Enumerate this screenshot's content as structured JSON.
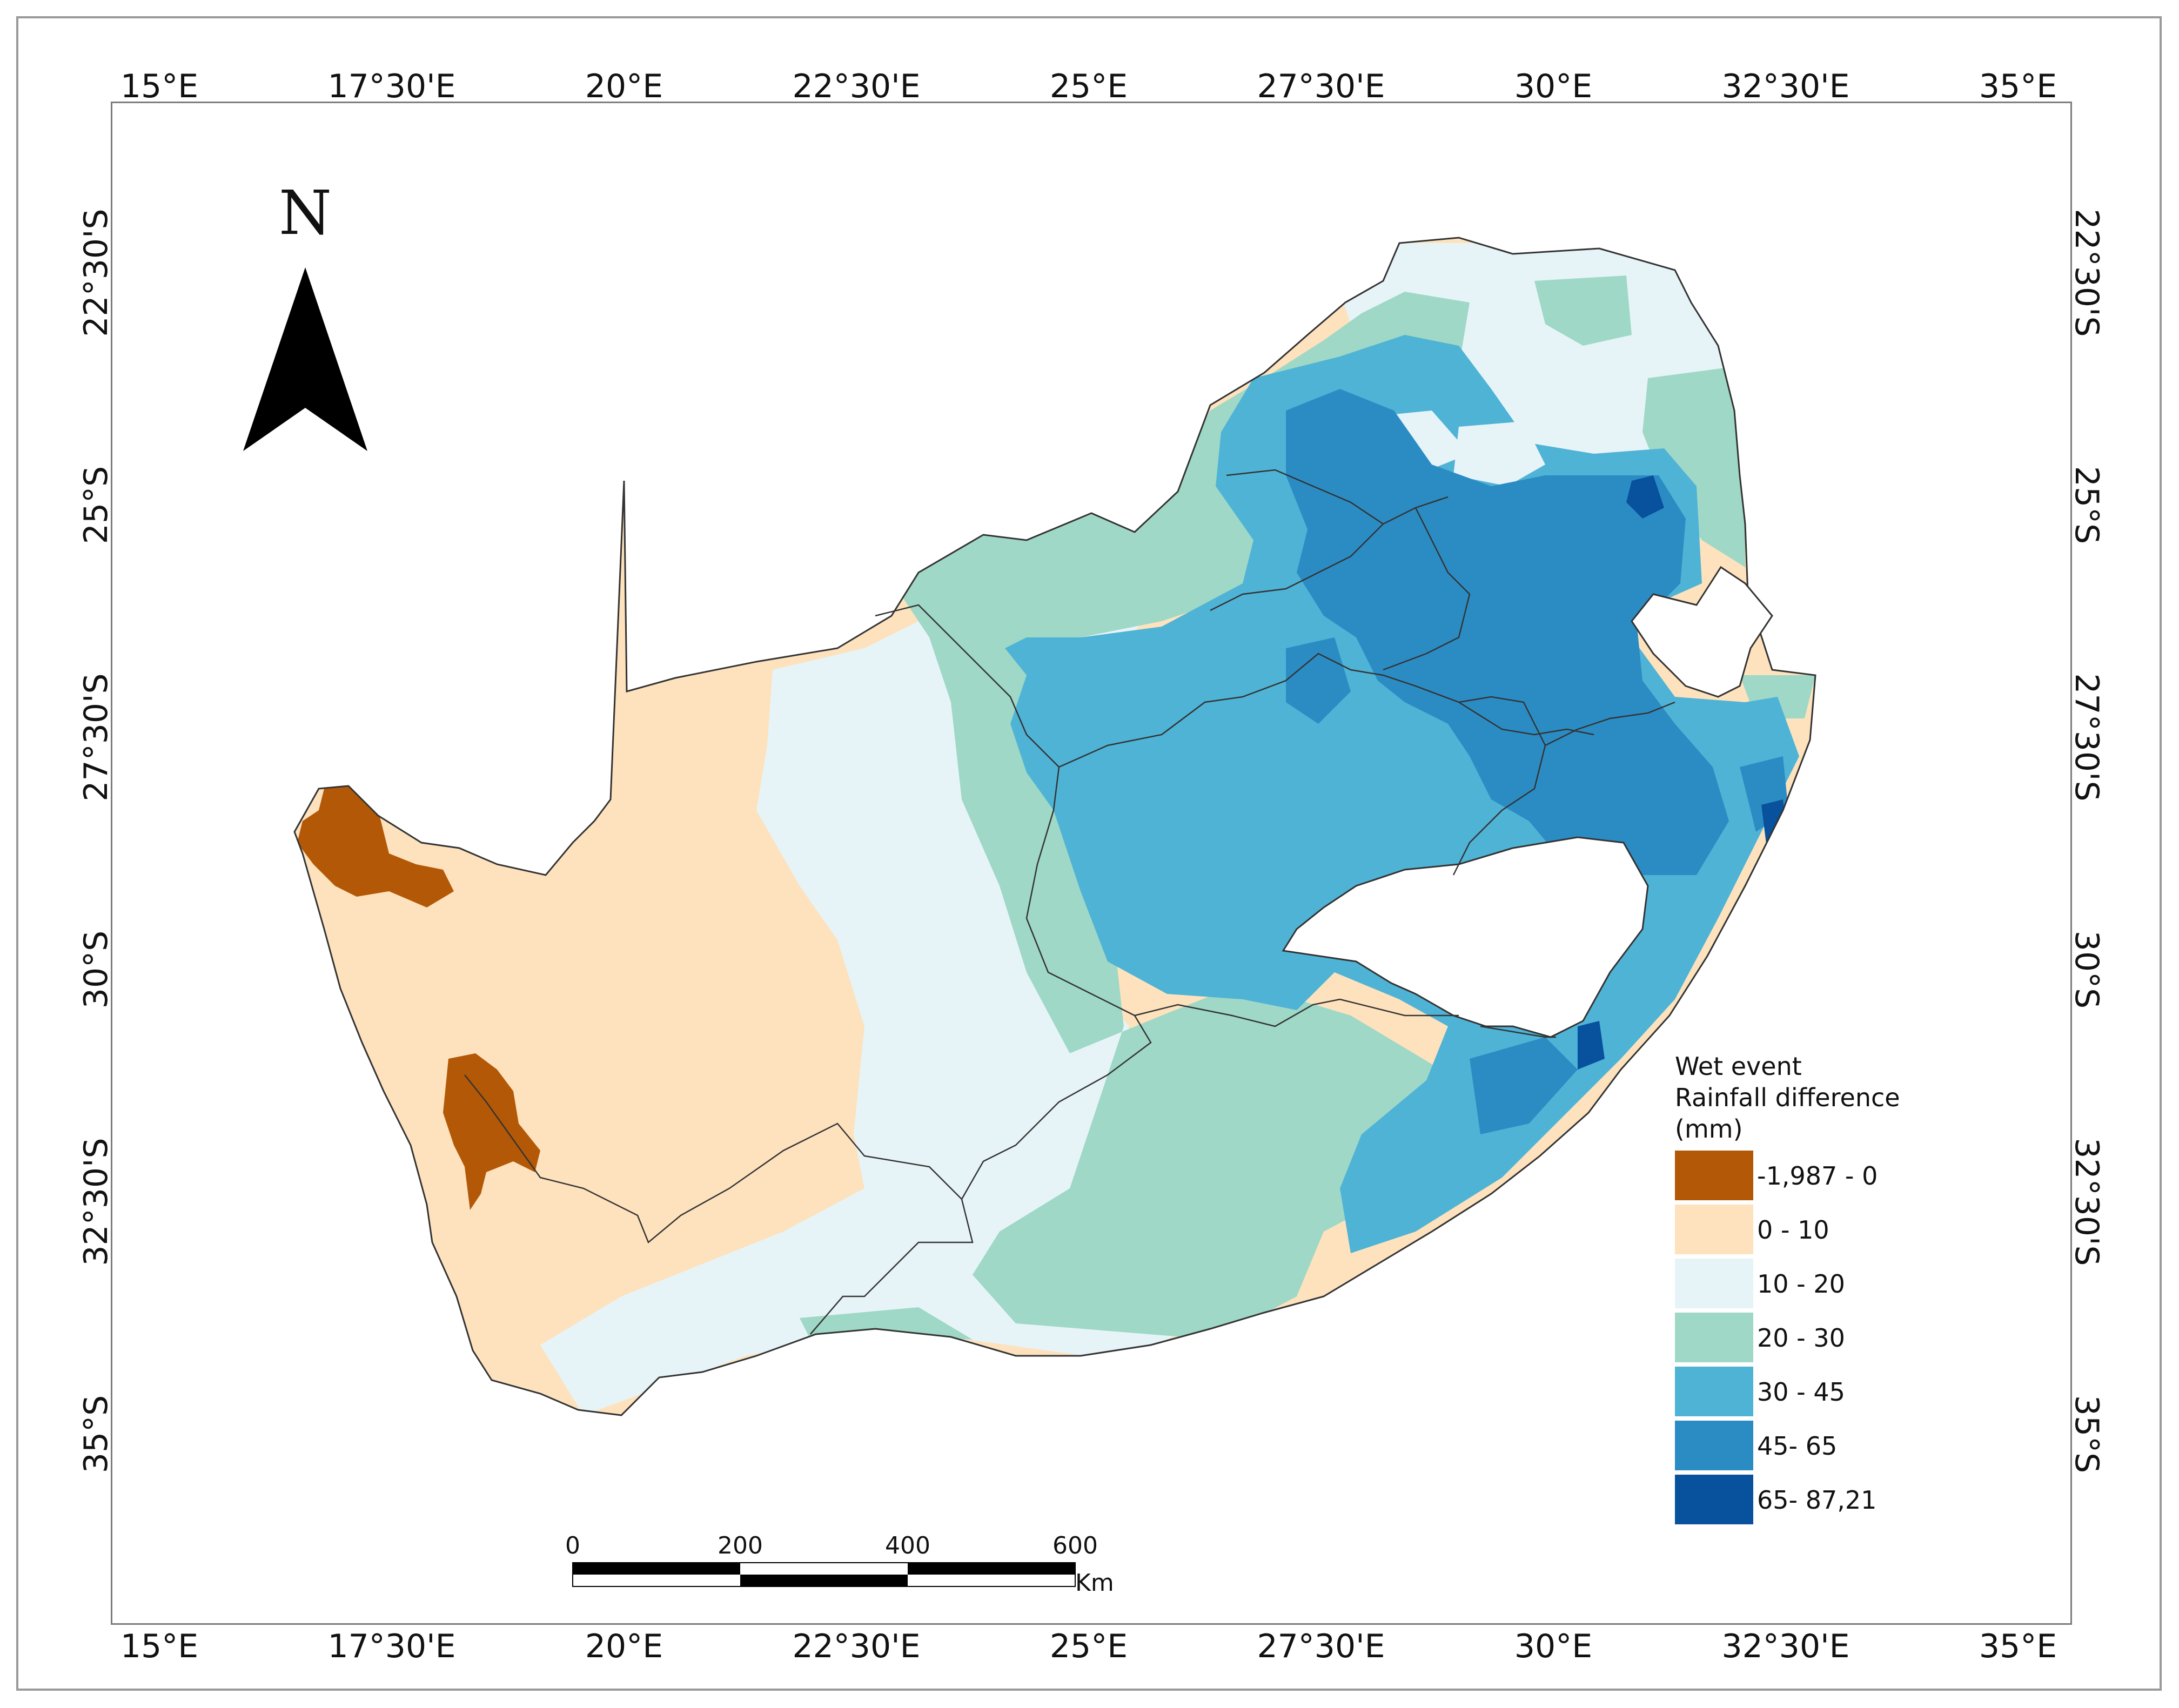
{
  "axes": {
    "longitudes": [
      "15°E",
      "17°30'E",
      "20°E",
      "22°30'E",
      "25°E",
      "27°30'E",
      "30°E",
      "32°30'E",
      "35°E"
    ],
    "latitudes": [
      "22°30'S",
      "25°S",
      "27°30'S",
      "30°S",
      "32°30'S",
      "35°S"
    ]
  },
  "north_arrow": {
    "label": "N"
  },
  "legend": {
    "title": "Wet event Rainfall difference (mm)",
    "items": [
      {
        "label": "-1,987 - 0",
        "color": "#b35806"
      },
      {
        "label": "0 - 10",
        "color": "#fde2bd"
      },
      {
        "label": "10 - 20",
        "color": "#e6f4f8"
      },
      {
        "label": "20 - 30",
        "color": "#9fd8c6"
      },
      {
        "label": "30 - 45",
        "color": "#4fb3d6"
      },
      {
        "label": "45- 65",
        "color": "#2b8cc4"
      },
      {
        "label": "65- 87,21",
        "color": "#08519c"
      }
    ]
  },
  "scale_bar": {
    "labels": [
      "0",
      "200",
      "400",
      "600"
    ],
    "unit": "Km"
  },
  "colors": {
    "frame": "#7d7d7d",
    "border": "#9a9a9a",
    "boundary_line": "#333333"
  }
}
